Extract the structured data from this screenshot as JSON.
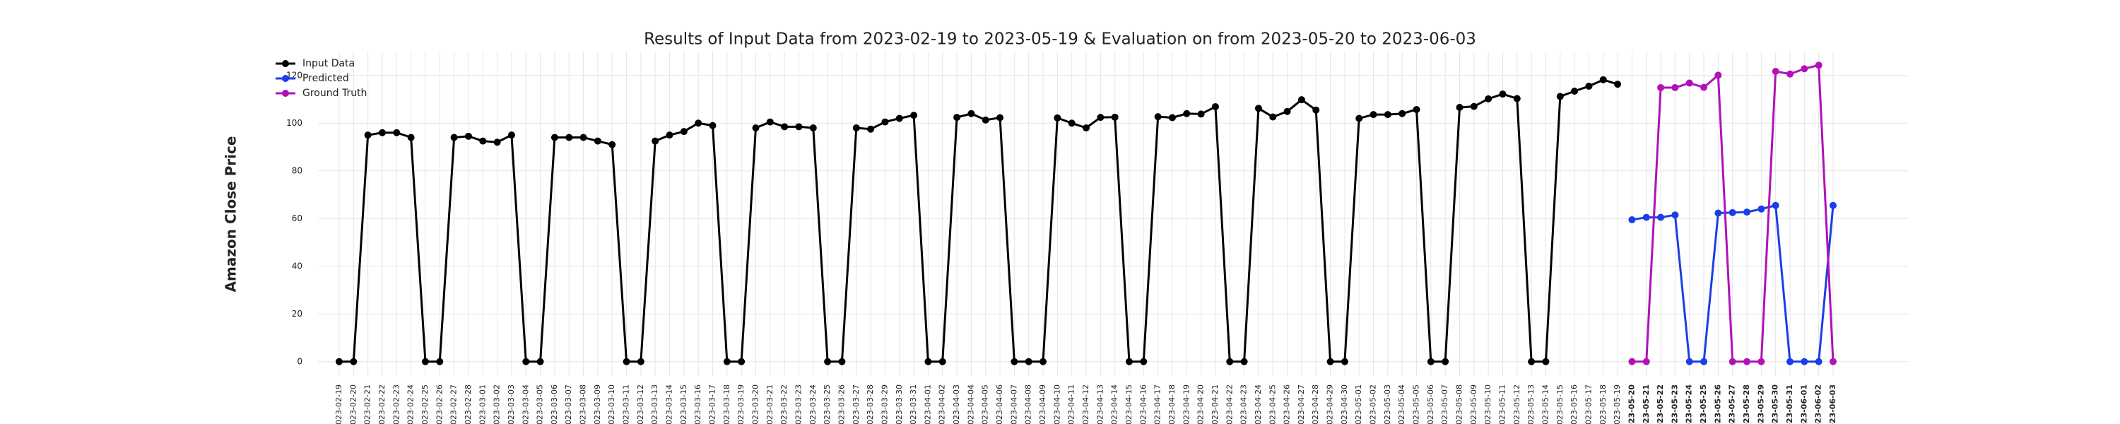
{
  "chart_data": {
    "type": "line",
    "title": "Results of Input Data from 2023-02-19 to 2023-05-19 & Evaluation on from 2023-05-20 to 2023-06-03",
    "y_label": "Amazon Close Price",
    "categories": [
      "2023-02-19",
      "2023-02-20",
      "2023-02-21",
      "2023-02-22",
      "2023-02-23",
      "2023-02-24",
      "2023-02-25",
      "2023-02-26",
      "2023-02-27",
      "2023-02-28",
      "2023-03-01",
      "2023-03-02",
      "2023-03-03",
      "2023-03-04",
      "2023-03-05",
      "2023-03-06",
      "2023-03-07",
      "2023-03-08",
      "2023-03-09",
      "2023-03-10",
      "2023-03-11",
      "2023-03-12",
      "2023-03-13",
      "2023-03-14",
      "2023-03-15",
      "2023-03-16",
      "2023-03-17",
      "2023-03-18",
      "2023-03-19",
      "2023-03-20",
      "2023-03-21",
      "2023-03-22",
      "2023-03-23",
      "2023-03-24",
      "2023-03-25",
      "2023-03-26",
      "2023-03-27",
      "2023-03-28",
      "2023-03-29",
      "2023-03-30",
      "2023-03-31",
      "2023-04-01",
      "2023-04-02",
      "2023-04-03",
      "2023-04-04",
      "2023-04-05",
      "2023-04-06",
      "2023-04-07",
      "2023-04-08",
      "2023-04-09",
      "2023-04-10",
      "2023-04-11",
      "2023-04-12",
      "2023-04-13",
      "2023-04-14",
      "2023-04-15",
      "2023-04-16",
      "2023-04-17",
      "2023-04-18",
      "2023-04-19",
      "2023-04-20",
      "2023-04-21",
      "2023-04-22",
      "2023-04-23",
      "2023-04-24",
      "2023-04-25",
      "2023-04-26",
      "2023-04-27",
      "2023-04-28",
      "2023-04-29",
      "2023-04-30",
      "2023-05-01",
      "2023-05-02",
      "2023-05-03",
      "2023-05-04",
      "2023-05-05",
      "2023-05-06",
      "2023-05-07",
      "2023-05-08",
      "2023-05-09",
      "2023-05-10",
      "2023-05-11",
      "2023-05-12",
      "2023-05-13",
      "2023-05-14",
      "2023-05-15",
      "2023-05-16",
      "2023-05-17",
      "2023-05-18",
      "2023-05-19",
      "2023-05-20",
      "2023-05-21",
      "2023-05-22",
      "2023-05-23",
      "2023-05-24",
      "2023-05-25",
      "2023-05-26",
      "2023-05-27",
      "2023-05-28",
      "2023-05-29",
      "2023-05-30",
      "2023-05-31",
      "2023-06-01",
      "2023-06-02",
      "2023-06-03"
    ],
    "series": [
      {
        "name": "Input Data",
        "color": "#000000",
        "values": [
          0,
          0,
          95,
          96,
          96,
          94,
          0,
          0,
          94,
          94.5,
          92.5,
          92,
          95,
          0,
          0,
          94,
          94,
          94,
          92.5,
          91,
          0,
          0,
          92.5,
          95,
          96.5,
          100,
          99,
          0,
          0,
          98,
          100.5,
          98.5,
          98.5,
          98,
          0,
          0,
          98,
          97.5,
          100.5,
          102,
          103.3,
          0,
          0,
          102.4,
          104,
          101.3,
          102.3,
          0,
          0,
          0,
          102.2,
          100,
          98,
          102.4,
          102.5,
          0,
          0,
          102.7,
          102.3,
          104,
          103.8,
          106.9,
          0,
          0,
          106.2,
          102.6,
          104.9,
          109.8,
          105.5,
          0,
          0,
          102,
          103.6,
          103.6,
          104,
          105.7,
          0,
          0,
          106.6,
          107,
          110.2,
          112.2,
          110.3,
          0,
          0,
          111.2,
          113.4,
          115.5,
          118.2,
          116.3,
          null,
          null,
          null,
          null,
          null,
          null,
          null,
          null,
          null,
          null,
          null,
          null,
          null,
          null,
          null
        ]
      },
      {
        "name": "Predicted",
        "color": "#1a3ee8",
        "values": [
          null,
          null,
          null,
          null,
          null,
          null,
          null,
          null,
          null,
          null,
          null,
          null,
          null,
          null,
          null,
          null,
          null,
          null,
          null,
          null,
          null,
          null,
          null,
          null,
          null,
          null,
          null,
          null,
          null,
          null,
          null,
          null,
          null,
          null,
          null,
          null,
          null,
          null,
          null,
          null,
          null,
          null,
          null,
          null,
          null,
          null,
          null,
          null,
          null,
          null,
          null,
          null,
          null,
          null,
          null,
          null,
          null,
          null,
          null,
          null,
          null,
          null,
          null,
          null,
          null,
          null,
          null,
          null,
          null,
          null,
          null,
          null,
          null,
          null,
          null,
          null,
          null,
          null,
          null,
          null,
          null,
          null,
          null,
          null,
          null,
          null,
          null,
          null,
          null,
          null,
          59.5,
          60.5,
          60.5,
          61.5,
          0,
          0,
          62.3,
          62.5,
          62.7,
          64,
          65.5,
          0,
          0,
          0,
          65.5
        ]
      },
      {
        "name": "Ground Truth",
        "color": "#b012b8",
        "values": [
          null,
          null,
          null,
          null,
          null,
          null,
          null,
          null,
          null,
          null,
          null,
          null,
          null,
          null,
          null,
          null,
          null,
          null,
          null,
          null,
          null,
          null,
          null,
          null,
          null,
          null,
          null,
          null,
          null,
          null,
          null,
          null,
          null,
          null,
          null,
          null,
          null,
          null,
          null,
          null,
          null,
          null,
          null,
          null,
          null,
          null,
          null,
          null,
          null,
          null,
          null,
          null,
          null,
          null,
          null,
          null,
          null,
          null,
          null,
          null,
          null,
          null,
          null,
          null,
          null,
          null,
          null,
          null,
          null,
          null,
          null,
          null,
          null,
          null,
          null,
          null,
          null,
          null,
          null,
          null,
          null,
          null,
          null,
          null,
          null,
          null,
          null,
          null,
          null,
          null,
          0,
          0,
          114.9,
          114.9,
          116.8,
          115,
          120.1,
          0,
          0,
          0,
          121.7,
          120.6,
          122.8,
          124.3,
          0
        ]
      }
    ],
    "ylim": [
      -6,
      130
    ],
    "yticks": [
      0,
      20,
      40,
      60,
      80,
      100,
      120
    ],
    "grid": true,
    "legend": "upper left"
  }
}
